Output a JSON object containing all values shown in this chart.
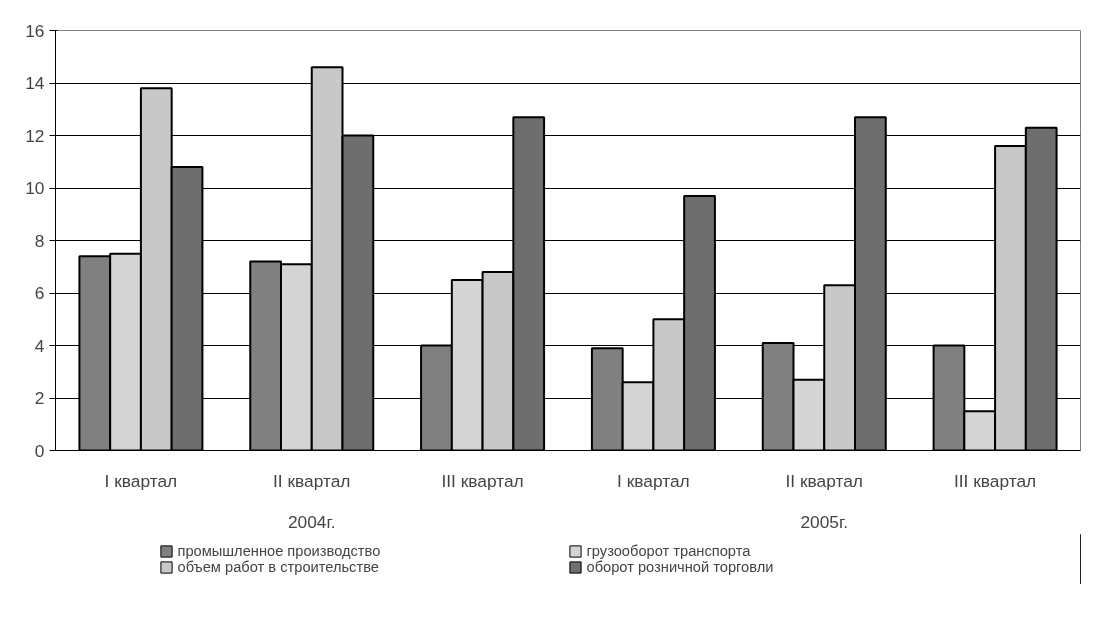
{
  "chart_data": {
    "type": "bar",
    "categories": [
      "I квартал",
      "II квартал",
      "III квартал",
      "I квартал",
      "II квартал",
      "III квартал"
    ],
    "annotations": [
      "2004г.",
      "2005г."
    ],
    "series": [
      {
        "name": "промышленное производство",
        "color": "#808080",
        "values": [
          7.4,
          7.2,
          4.0,
          3.9,
          4.1,
          4.0
        ]
      },
      {
        "name": "грузооборот транспорта",
        "color": "#d4d4d4",
        "values": [
          7.5,
          7.1,
          6.5,
          2.6,
          2.7,
          1.5
        ]
      },
      {
        "name": "объем работ в строительстве",
        "color": "#c8c8c8",
        "values": [
          13.8,
          14.6,
          6.8,
          5.0,
          6.3,
          11.6
        ]
      },
      {
        "name": "оборот розничной торговли",
        "color": "#6e6e6e",
        "values": [
          10.8,
          12.0,
          12.7,
          9.7,
          12.7,
          12.3
        ]
      }
    ],
    "ylim": [
      0,
      16
    ],
    "yticks": [
      0,
      2,
      4,
      6,
      8,
      10,
      12,
      14,
      16
    ],
    "grid": "y",
    "legend": "bottom"
  }
}
